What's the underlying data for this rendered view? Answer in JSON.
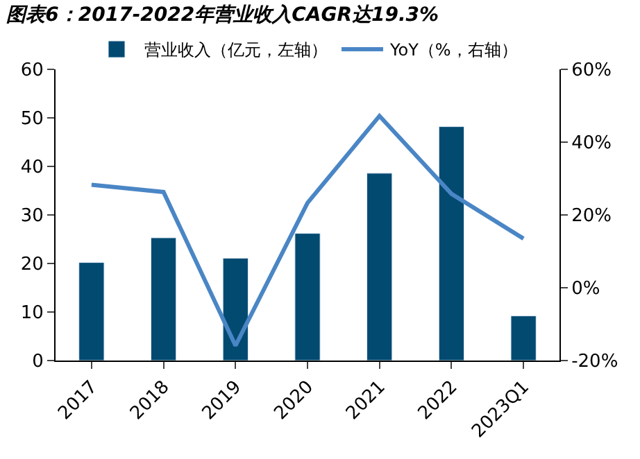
{
  "chart_data": {
    "type": "bar",
    "title": "图表6：2017-2022年营业收入CAGR达19.3%",
    "categories": [
      "2017",
      "2018",
      "2019",
      "2020",
      "2021",
      "2022",
      "2023Q1"
    ],
    "series": [
      {
        "name": "营业收入（亿元，左轴）",
        "color": "#034a71",
        "values": [
          20.2,
          25.3,
          21.1,
          26.2,
          38.6,
          48.2,
          9.2
        ]
      },
      {
        "name": "YoY（%，右轴）",
        "type": "line",
        "axis": "y2",
        "color": "#4a86c5",
        "values": [
          28.3,
          26.3,
          -15.9,
          23.3,
          47.2,
          25.8,
          13.5
        ]
      }
    ],
    "ylim": [
      0,
      60
    ],
    "yticks": [
      0,
      10,
      20,
      30,
      40,
      50,
      60
    ],
    "y2lim": [
      -20,
      60
    ],
    "y2ticks": [
      {
        "value": -20,
        "label": "-20%"
      },
      {
        "value": 0,
        "label": "0%"
      },
      {
        "value": 20,
        "label": "20%"
      },
      {
        "value": 40,
        "label": "40%"
      },
      {
        "value": 60,
        "label": "60%"
      }
    ],
    "legend": "top",
    "marker": "none",
    "line_style": "solid"
  }
}
